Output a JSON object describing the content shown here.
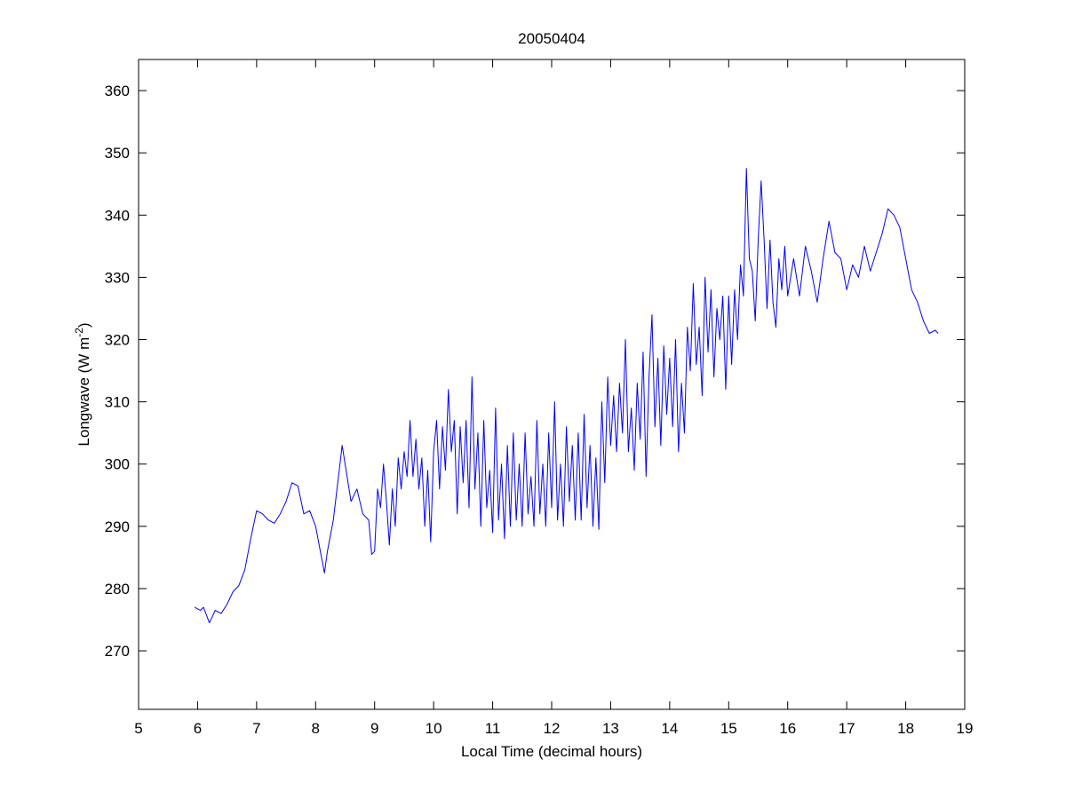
{
  "chart_data": {
    "type": "line",
    "title": "20050404",
    "x_label": "Local Time (decimal hours)",
    "y_label": {
      "text": "Longwave (W m",
      "superscript": "-2",
      "suffix": ")"
    },
    "xlim": [
      5,
      19
    ],
    "ylim": [
      260.6,
      365
    ],
    "xticks": [
      5,
      6,
      7,
      8,
      9,
      10,
      11,
      12,
      13,
      14,
      15,
      16,
      17,
      18,
      19
    ],
    "yticks": [
      270,
      280,
      290,
      300,
      310,
      320,
      330,
      340,
      350,
      360
    ],
    "grid": false,
    "x": [
      5.95,
      6.05,
      6.1,
      6.2,
      6.3,
      6.4,
      6.5,
      6.6,
      6.7,
      6.8,
      6.9,
      7,
      7.1,
      7.2,
      7.3,
      7.4,
      7.5,
      7.6,
      7.7,
      7.8,
      7.9,
      8,
      8.1,
      8.15,
      8.2,
      8.3,
      8.4,
      8.45,
      8.5,
      8.6,
      8.7,
      8.8,
      8.9,
      8.95,
      9,
      9.05,
      9.1,
      9.15,
      9.2,
      9.25,
      9.3,
      9.35,
      9.4,
      9.45,
      9.5,
      9.55,
      9.6,
      9.65,
      9.7,
      9.75,
      9.8,
      9.85,
      9.9,
      9.95,
      10,
      10.05,
      10.1,
      10.15,
      10.2,
      10.25,
      10.3,
      10.35,
      10.4,
      10.45,
      10.5,
      10.55,
      10.6,
      10.65,
      10.7,
      10.75,
      10.8,
      10.85,
      10.9,
      10.95,
      11,
      11.05,
      11.1,
      11.15,
      11.2,
      11.25,
      11.3,
      11.35,
      11.4,
      11.45,
      11.5,
      11.55,
      11.6,
      11.65,
      11.7,
      11.75,
      11.8,
      11.85,
      11.9,
      11.95,
      12,
      12.05,
      12.1,
      12.15,
      12.2,
      12.25,
      12.3,
      12.35,
      12.4,
      12.45,
      12.5,
      12.55,
      12.6,
      12.65,
      12.7,
      12.75,
      12.8,
      12.85,
      12.9,
      12.95,
      13,
      13.05,
      13.1,
      13.15,
      13.2,
      13.25,
      13.3,
      13.35,
      13.4,
      13.45,
      13.5,
      13.55,
      13.6,
      13.65,
      13.7,
      13.75,
      13.8,
      13.85,
      13.9,
      13.95,
      14,
      14.05,
      14.1,
      14.15,
      14.2,
      14.25,
      14.3,
      14.35,
      14.4,
      14.45,
      14.5,
      14.55,
      14.6,
      14.65,
      14.7,
      14.75,
      14.8,
      14.85,
      14.9,
      14.95,
      15,
      15.05,
      15.1,
      15.15,
      15.2,
      15.25,
      15.3,
      15.35,
      15.4,
      15.45,
      15.5,
      15.55,
      15.6,
      15.65,
      15.7,
      15.75,
      15.8,
      15.85,
      15.9,
      15.95,
      16,
      16.1,
      16.2,
      16.3,
      16.4,
      16.5,
      16.6,
      16.7,
      16.8,
      16.9,
      17,
      17.1,
      17.2,
      17.3,
      17.4,
      17.5,
      17.6,
      17.7,
      17.8,
      17.9,
      18,
      18.1,
      18.2,
      18.3,
      18.4,
      18.5,
      18.55
    ],
    "series": [
      {
        "color": "#0000ff",
        "values": [
          277,
          276.5,
          277,
          274.5,
          276.5,
          276,
          277.5,
          279.5,
          280.5,
          283,
          288,
          292.5,
          292,
          291,
          290.5,
          292,
          294,
          297,
          296.5,
          292,
          292.5,
          290,
          285,
          282.5,
          286,
          291,
          299,
          303,
          300,
          294,
          296,
          292,
          291,
          285.5,
          286,
          296,
          293,
          300,
          294,
          287,
          296,
          290,
          301,
          296,
          302,
          298,
          307,
          298,
          304,
          296,
          301,
          290,
          299,
          287.5,
          302,
          307,
          296,
          306,
          299,
          312,
          302,
          307,
          292,
          306,
          297,
          307,
          293,
          314,
          296,
          305,
          290,
          307,
          293,
          299,
          289,
          309,
          291,
          300,
          288,
          303,
          290,
          305,
          291,
          300,
          290,
          305,
          292,
          298,
          290,
          307,
          292,
          300,
          290,
          305,
          293,
          310,
          291,
          300,
          290,
          306,
          294,
          303,
          291,
          305,
          291,
          308,
          293,
          303,
          290,
          301,
          289.5,
          310,
          297,
          314,
          303,
          311,
          302,
          313,
          305,
          320,
          302,
          309,
          299,
          313,
          304,
          318,
          298,
          314,
          324,
          306,
          317,
          303,
          319,
          308,
          317,
          306,
          320,
          302,
          313,
          305,
          322,
          315,
          329,
          316,
          322,
          311,
          330,
          318,
          328,
          314,
          325,
          320,
          327,
          312,
          327,
          316,
          328,
          320,
          332,
          327,
          347.5,
          333,
          331,
          323,
          336,
          345.5,
          336,
          325,
          336,
          326,
          322,
          333,
          328,
          335,
          327,
          333,
          327,
          335,
          331,
          326,
          333,
          339,
          334,
          333,
          328,
          332,
          330,
          335,
          331,
          334,
          337,
          341,
          340,
          338,
          333,
          328,
          326,
          323,
          321,
          321.5,
          321
        ]
      }
    ]
  }
}
